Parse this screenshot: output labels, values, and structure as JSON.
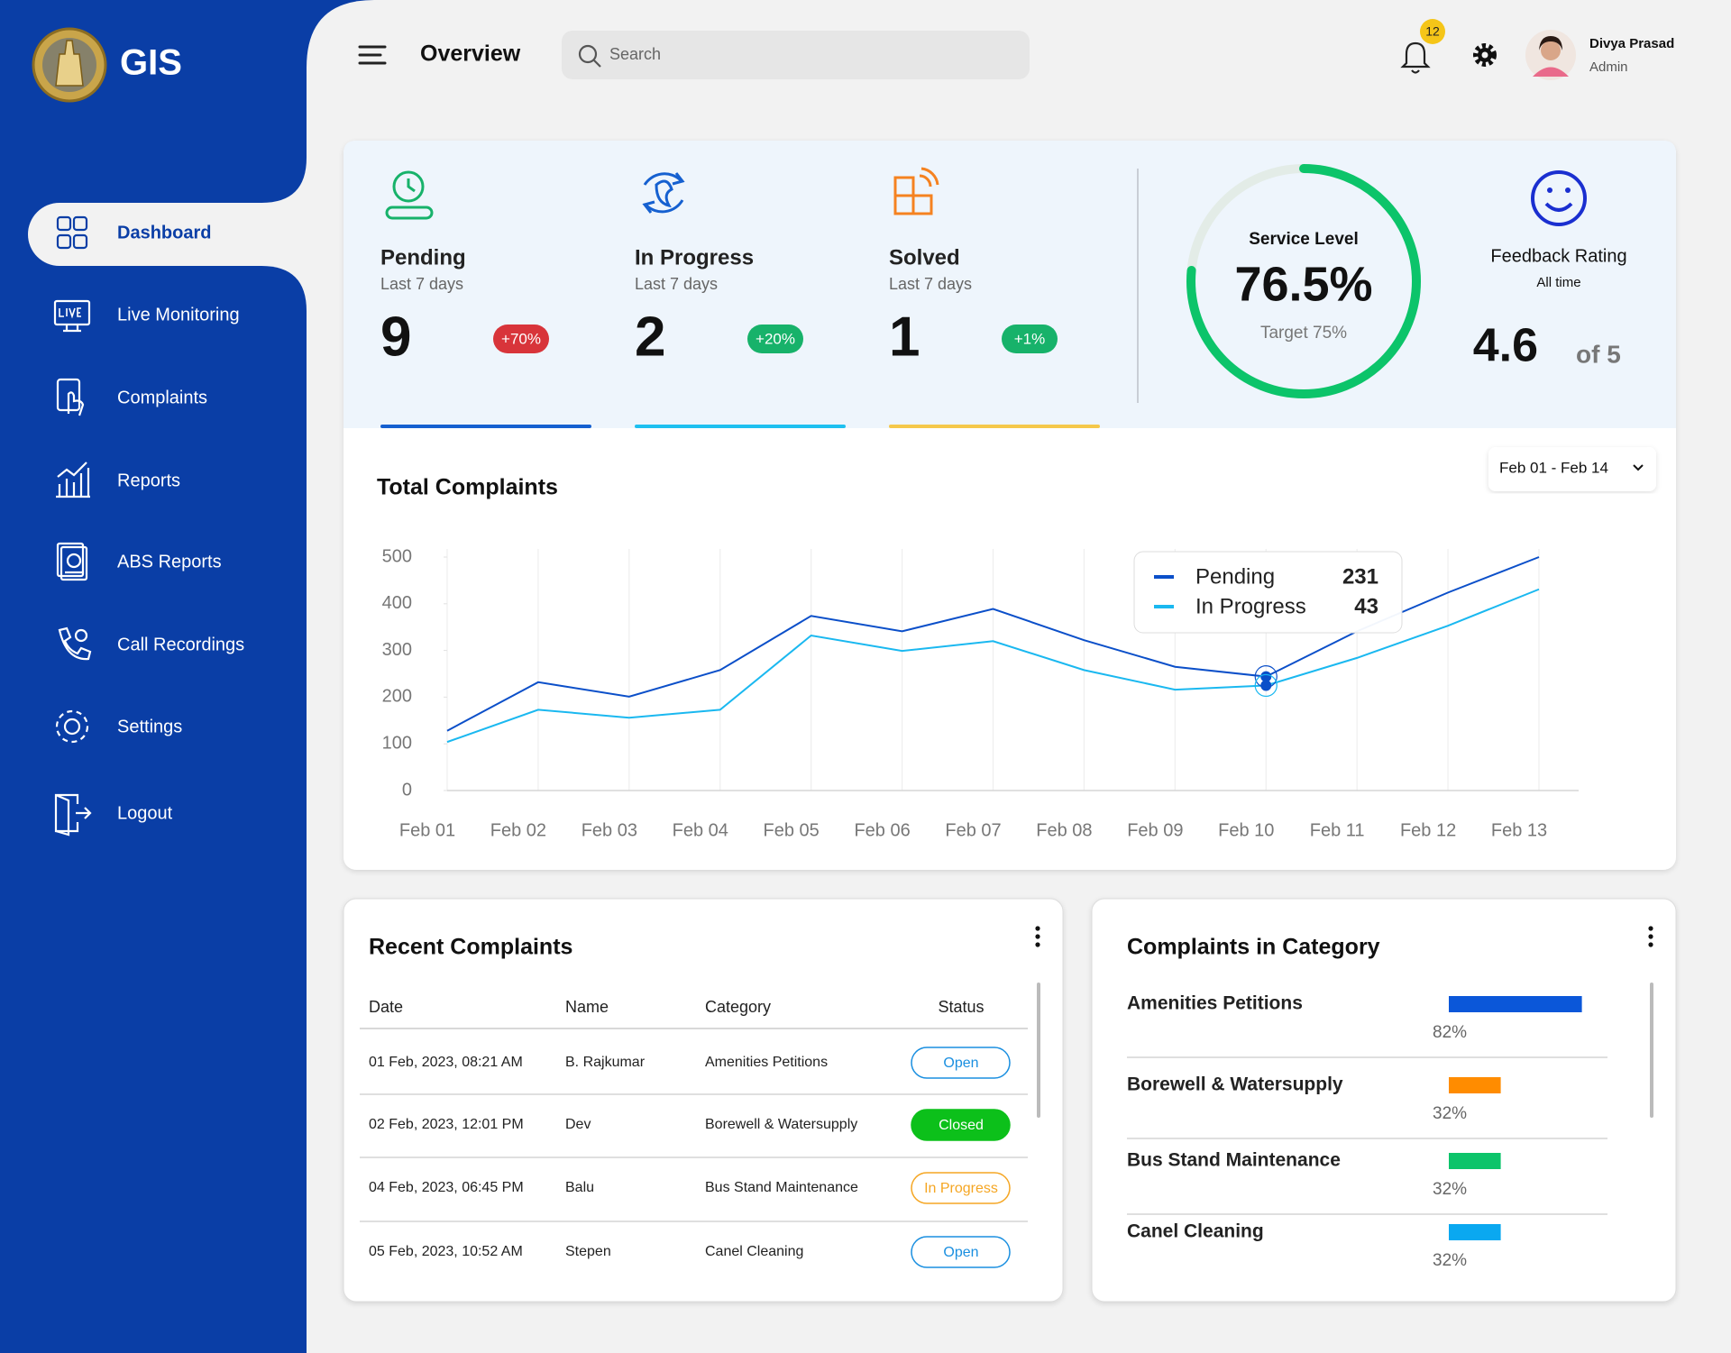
{
  "sidebar": {
    "brand": "GIS",
    "nav": [
      "Dashboard",
      "Live Monitoring",
      "Complaints",
      "Reports",
      "ABS Reports",
      "Call Recordings",
      "Settings",
      "Logout"
    ]
  },
  "header": {
    "title": "Overview",
    "search": "Search",
    "notifications": 12,
    "user": {
      "name": "Divya Prasad",
      "role": "Admin"
    }
  },
  "stats": [
    {
      "label": "Pending",
      "period": "Last 7 days",
      "value": 9,
      "change": "+70%",
      "badge_color": "#d8343a",
      "color": "#1560d0"
    },
    {
      "label": "In Progress",
      "period": "Last 7 days",
      "value": 2,
      "change": "+20%",
      "badge_color": "#17b26a",
      "color": "#1ec0f0"
    },
    {
      "label": "Solved",
      "period": "Last 7 days",
      "value": 1,
      "change": "+1%",
      "badge_color": "#17b26a",
      "color": "#f5c84a"
    }
  ],
  "service_level": {
    "label": "Service Level",
    "value": 76.5,
    "value_label": "76.5%",
    "target": "Target 75%",
    "color": "#0cc46a"
  },
  "feedback": {
    "label": "Feedback Rating",
    "period": "All time",
    "value": 4.6,
    "scale": "of 5"
  },
  "chart_data": {
    "type": "line",
    "title": "Total Complaints",
    "date_range": "Feb 01 - Feb 14",
    "categories": [
      "Feb 01",
      "Feb 02",
      "Feb 03",
      "Feb 04",
      "Feb 05",
      "Feb 06",
      "Feb 07",
      "Feb 08",
      "Feb 09",
      "Feb 10",
      "Feb 11",
      "Feb 12",
      "Feb 13"
    ],
    "series": [
      {
        "name": "Pending",
        "color": "#0b4fc9",
        "values": [
          128,
          232,
          201,
          258,
          374,
          341,
          389,
          322,
          265,
          244,
          341,
          424,
          500
        ]
      },
      {
        "name": "In Progress",
        "color": "#1ab8f0",
        "values": [
          104,
          173,
          156,
          173,
          332,
          299,
          320,
          258,
          216,
          225,
          284,
          353,
          431
        ]
      }
    ],
    "ylim": [
      0,
      500
    ],
    "yticks": [
      0,
      100,
      200,
      300,
      400,
      500
    ],
    "tooltip_values": [
      231,
      43
    ]
  },
  "recent_complaints": {
    "title": "Recent Complaints",
    "columns": [
      "Date",
      "Name",
      "Category",
      "Status"
    ],
    "rows": [
      [
        "01 Feb, 2023, 08:21 AM",
        "B. Rajkumar",
        "Amenities Petitions",
        "Open"
      ],
      [
        "02 Feb, 2023, 12:01 PM",
        "Dev",
        "Borewell & Watersupply",
        "Closed"
      ],
      [
        "04 Feb, 2023, 06:45 PM",
        "Balu",
        "Bus Stand Maintenance",
        "In Progress"
      ],
      [
        "05 Feb, 2023, 10:52 AM",
        "Stepen",
        "Canel Cleaning",
        "Open"
      ]
    ],
    "status_colors": [
      "#1a8fe0",
      "#0cc01a",
      "#f5a623",
      "#1a8fe0"
    ],
    "status_filled": [
      false,
      true,
      false,
      false
    ]
  },
  "complaint_categories": {
    "title": "Complaints in Category",
    "items": [
      {
        "name": "Amenities Petitions",
        "value": 82,
        "value_label": "82%",
        "color": "#0b57d9"
      },
      {
        "name": "Borewell & Watersupply",
        "value": 32,
        "value_label": "32%",
        "color": "#ff8c00"
      },
      {
        "name": "Bus Stand Maintenance",
        "value": 32,
        "value_label": "32%",
        "color": "#0cc46a"
      },
      {
        "name": "Canel Cleaning",
        "value": 32,
        "value_label": "32%",
        "color": "#0aa8f0"
      }
    ]
  }
}
